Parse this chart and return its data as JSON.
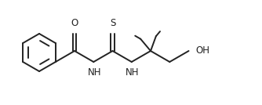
{
  "bg_color": "#ffffff",
  "line_color": "#222222",
  "line_width": 1.4,
  "font_size": 8.5,
  "label_O": "O",
  "label_S": "S",
  "label_NH1": "NH",
  "label_NH2": "NH",
  "label_OH": "OH"
}
